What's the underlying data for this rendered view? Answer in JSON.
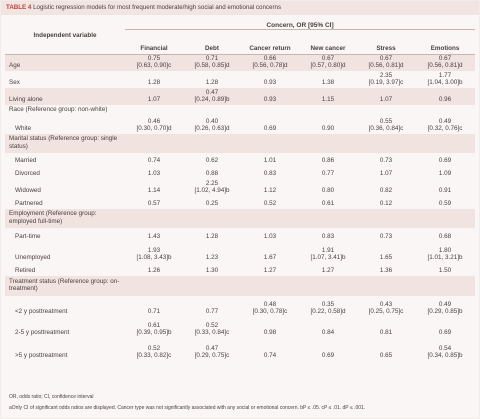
{
  "table_label": "TABLE 4",
  "title": "Logistic regression models for most frequent moderate/high social and emotional concerns",
  "super_header": "Concern, OR [95% CI]",
  "columns": [
    "Independent variable",
    "Financial",
    "Debt",
    "Cancer return",
    "New cancer",
    "Stress",
    "Emotions"
  ],
  "rows": [
    {
      "label": "Age",
      "shade": true,
      "indent": false,
      "h": 17,
      "cells": [
        {
          "v": "0.75",
          "ci": "[0.63, 0.90]c"
        },
        {
          "v": "0.71",
          "ci": "[0.58, 0.85]d"
        },
        {
          "v": "0.66",
          "ci": "[0.56, 0.78]d"
        },
        {
          "v": "0.67",
          "ci": "[0.57, 0.80]d"
        },
        {
          "v": "0.67",
          "ci": "[0.56, 0.81]d"
        },
        {
          "v": "0.67",
          "ci": "[0.56, 0.81]d"
        }
      ]
    },
    {
      "label": "Sex",
      "shade": false,
      "indent": false,
      "h": 17,
      "cells": [
        {
          "v": "1.28",
          "ci": ""
        },
        {
          "v": "1.28",
          "ci": ""
        },
        {
          "v": "0.93",
          "ci": ""
        },
        {
          "v": "1.38",
          "ci": ""
        },
        {
          "v": "2.35",
          "ci": "[0.19, 3.97]c"
        },
        {
          "v": "1.77",
          "ci": "[1.04, 3.00]b"
        }
      ]
    },
    {
      "label": "Living alone",
      "shade": true,
      "indent": false,
      "h": 17,
      "cells": [
        {
          "v": "1.07",
          "ci": ""
        },
        {
          "v": "0.47",
          "ci": "[0.24, 0.89]b"
        },
        {
          "v": "0.93",
          "ci": ""
        },
        {
          "v": "1.15",
          "ci": ""
        },
        {
          "v": "1.07",
          "ci": ""
        },
        {
          "v": "0.96",
          "ci": ""
        }
      ]
    },
    {
      "label": "Race (Reference group: non-white)",
      "shade": false,
      "indent": false,
      "h": 11,
      "header": true,
      "cells": []
    },
    {
      "label": "White",
      "shade": false,
      "indent": true,
      "h": 18,
      "cells": [
        {
          "v": "0.46",
          "ci": "[0.30, 0.70]d"
        },
        {
          "v": "0.40",
          "ci": "[0.26, 0.63]d"
        },
        {
          "v": "0.69",
          "ci": ""
        },
        {
          "v": "0.90",
          "ci": ""
        },
        {
          "v": "0.55",
          "ci": "[0.36, 0.84]c"
        },
        {
          "v": "0.49",
          "ci": "[0.32, 0.76]c"
        }
      ]
    },
    {
      "label": "Marital status (Reference group: single status)",
      "shade": true,
      "indent": false,
      "h": 19,
      "header": true,
      "cells": []
    },
    {
      "label": "Married",
      "shade": false,
      "indent": true,
      "h": 13,
      "cells": [
        {
          "v": "0.74",
          "ci": ""
        },
        {
          "v": "0.62",
          "ci": ""
        },
        {
          "v": "1.01",
          "ci": ""
        },
        {
          "v": "0.86",
          "ci": ""
        },
        {
          "v": "0.73",
          "ci": ""
        },
        {
          "v": "0.69",
          "ci": ""
        }
      ]
    },
    {
      "label": "Divorced",
      "shade": false,
      "indent": true,
      "h": 13,
      "cells": [
        {
          "v": "1.03",
          "ci": ""
        },
        {
          "v": "0.88",
          "ci": ""
        },
        {
          "v": "0.83",
          "ci": ""
        },
        {
          "v": "0.77",
          "ci": ""
        },
        {
          "v": "1.07",
          "ci": ""
        },
        {
          "v": "1.09",
          "ci": ""
        }
      ]
    },
    {
      "label": "Widowed",
      "shade": false,
      "indent": true,
      "h": 17,
      "cells": [
        {
          "v": "1.14",
          "ci": ""
        },
        {
          "v": "2.25",
          "ci": "[1.02, 4.94]b"
        },
        {
          "v": "1.12",
          "ci": ""
        },
        {
          "v": "0.80",
          "ci": ""
        },
        {
          "v": "0.82",
          "ci": ""
        },
        {
          "v": "0.91",
          "ci": ""
        }
      ]
    },
    {
      "label": "Partnered",
      "shade": false,
      "indent": true,
      "h": 13,
      "cells": [
        {
          "v": "0.57",
          "ci": ""
        },
        {
          "v": "0.25",
          "ci": ""
        },
        {
          "v": "0.52",
          "ci": ""
        },
        {
          "v": "0.61",
          "ci": ""
        },
        {
          "v": "0.12",
          "ci": ""
        },
        {
          "v": "0.59",
          "ci": ""
        }
      ]
    },
    {
      "label": "Employment (Reference group: employed full-time)",
      "shade": true,
      "indent": false,
      "h": 19,
      "header": true,
      "cells": []
    },
    {
      "label": "Part-time",
      "shade": false,
      "indent": true,
      "h": 14,
      "cells": [
        {
          "v": "1.43",
          "ci": ""
        },
        {
          "v": "1.28",
          "ci": ""
        },
        {
          "v": "1.03",
          "ci": ""
        },
        {
          "v": "0.83",
          "ci": ""
        },
        {
          "v": "0.73",
          "ci": ""
        },
        {
          "v": "0.68",
          "ci": ""
        }
      ]
    },
    {
      "label": "Unemployed",
      "shade": false,
      "indent": true,
      "h": 21,
      "cells": [
        {
          "v": "1.93",
          "ci": "[1.08, 3.43]b"
        },
        {
          "v": "1.23",
          "ci": ""
        },
        {
          "v": "1.67",
          "ci": ""
        },
        {
          "v": "1.91",
          "ci": "[1.07, 3.41]b"
        },
        {
          "v": "1.65",
          "ci": ""
        },
        {
          "v": "1.80",
          "ci": "[1.01, 3.21]b"
        }
      ]
    },
    {
      "label": "Retired",
      "shade": false,
      "indent": true,
      "h": 13,
      "cells": [
        {
          "v": "1.26",
          "ci": ""
        },
        {
          "v": "1.30",
          "ci": ""
        },
        {
          "v": "1.27",
          "ci": ""
        },
        {
          "v": "1.27",
          "ci": ""
        },
        {
          "v": "1.36",
          "ci": ""
        },
        {
          "v": "1.50",
          "ci": ""
        }
      ]
    },
    {
      "label": "Treatment status (Reference group: on-treatment)",
      "shade": true,
      "indent": false,
      "h": 20,
      "header": true,
      "cells": []
    },
    {
      "label": "<2 y posttreatment",
      "shade": false,
      "indent": true,
      "h": 21,
      "cells": [
        {
          "v": "0.71",
          "ci": ""
        },
        {
          "v": "0.77",
          "ci": ""
        },
        {
          "v": "0.48",
          "ci": "[0.30, 0.78]c"
        },
        {
          "v": "0.35",
          "ci": "[0.22, 0.58]d"
        },
        {
          "v": "0.43",
          "ci": "[0.25, 0.75]c"
        },
        {
          "v": "0.49",
          "ci": "[0.29, 0.85]b"
        }
      ]
    },
    {
      "label": "2-5 y posttreatment",
      "shade": false,
      "indent": true,
      "h": 21,
      "cells": [
        {
          "v": "0.61",
          "ci": "[0.39, 0.95]b"
        },
        {
          "v": "0.52",
          "ci": "[0.33, 0.84]c"
        },
        {
          "v": "0.98",
          "ci": ""
        },
        {
          "v": "0.84",
          "ci": ""
        },
        {
          "v": "0.81",
          "ci": ""
        },
        {
          "v": "0.69",
          "ci": ""
        }
      ]
    },
    {
      "label": ">5 y posttreatment",
      "shade": false,
      "indent": true,
      "h": 23,
      "cells": [
        {
          "v": "0.52",
          "ci": "[0.33, 0.82]c"
        },
        {
          "v": "0.47",
          "ci": "[0.29, 0.75]c"
        },
        {
          "v": "0.74",
          "ci": ""
        },
        {
          "v": "0.69",
          "ci": ""
        },
        {
          "v": "0.65",
          "ci": ""
        },
        {
          "v": "0.54",
          "ci": "[0.34, 0.85]b"
        }
      ]
    }
  ],
  "footnote_abbrev": "OR, odds ratio; CI, confidence interval",
  "footnote_note": "aOnly CI of significant odds ratios are displayed. Cancer type was not significantly associated with any social or emotional concern. bP ≤ .05. cP ≤ .01. dP ≤ .001.",
  "colors": {
    "accent": "#c0403c",
    "shade": "#f0e3e0",
    "background": "#faf6f5",
    "text": "#4a4040"
  }
}
